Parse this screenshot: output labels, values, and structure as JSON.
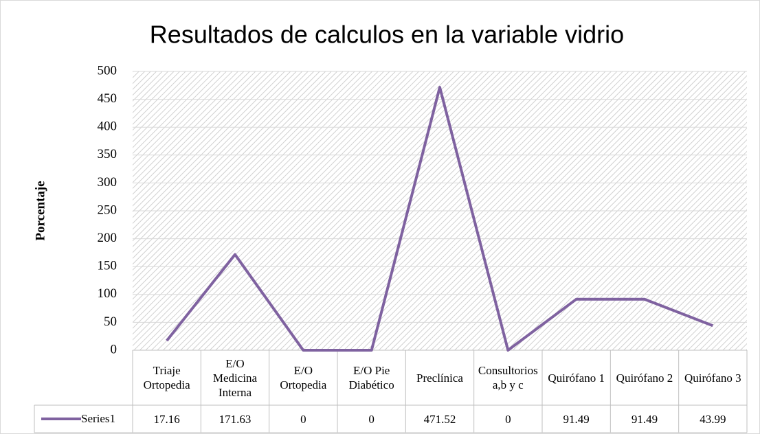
{
  "chart_data": {
    "type": "line",
    "title": "Resultados de calculos en la variable vidrio",
    "y_label": "Porcentaje",
    "categories": [
      "Triaje Ortopedia",
      "E/O Medicina Interna",
      "E/O Ortopedia",
      "E/O Pie Diabético",
      "Preclínica",
      "Consultorios a,b y c",
      "Quirófano 1",
      "Quirófano 2",
      "Quirófano 3"
    ],
    "series": [
      {
        "name": "Series1",
        "color": "#7f62a0",
        "values": [
          17.16,
          171.63,
          0,
          0,
          471.52,
          0,
          91.49,
          91.49,
          43.99
        ]
      }
    ],
    "ylim": [
      0,
      500
    ],
    "yticks": [
      0,
      50,
      100,
      150,
      200,
      250,
      300,
      350,
      400,
      450,
      500
    ],
    "grid": true
  }
}
